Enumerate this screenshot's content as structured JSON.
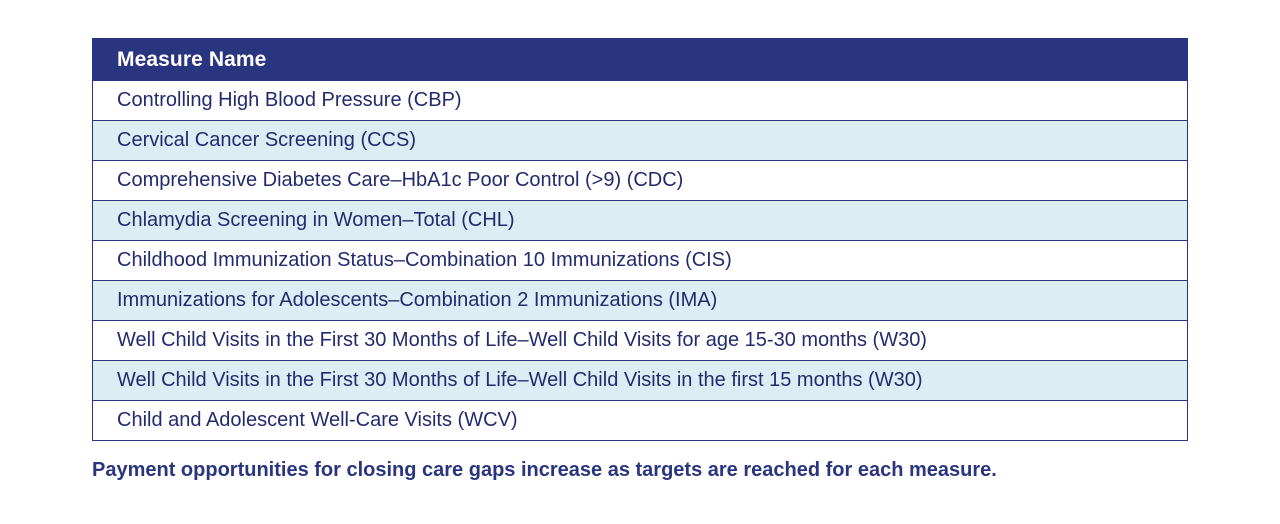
{
  "table": {
    "header": "Measure Name",
    "rows": [
      "Controlling High Blood Pressure (CBP)",
      "Cervical Cancer Screening (CCS)",
      "Comprehensive Diabetes Care–HbA1c Poor Control (>9) (CDC)",
      "Chlamydia Screening in Women–Total (CHL)",
      "Childhood Immunization Status–Combination 10 Immunizations (CIS)",
      "Immunizations for Adolescents–Combination 2 Immunizations (IMA)",
      "Well Child Visits in the First 30 Months of Life–Well Child Visits for age 15-30 months (W30)",
      "Well Child Visits in the First 30 Months of Life–Well Child Visits in the first 15 months (W30)",
      "Child and Adolescent Well-Care Visits (WCV)"
    ]
  },
  "footnote": "Payment opportunities for closing care gaps increase as targets are reached for each measure.",
  "colors": {
    "header_bg": "#29367f",
    "row_alt_bg": "#daeef4",
    "text": "#222b6e"
  }
}
